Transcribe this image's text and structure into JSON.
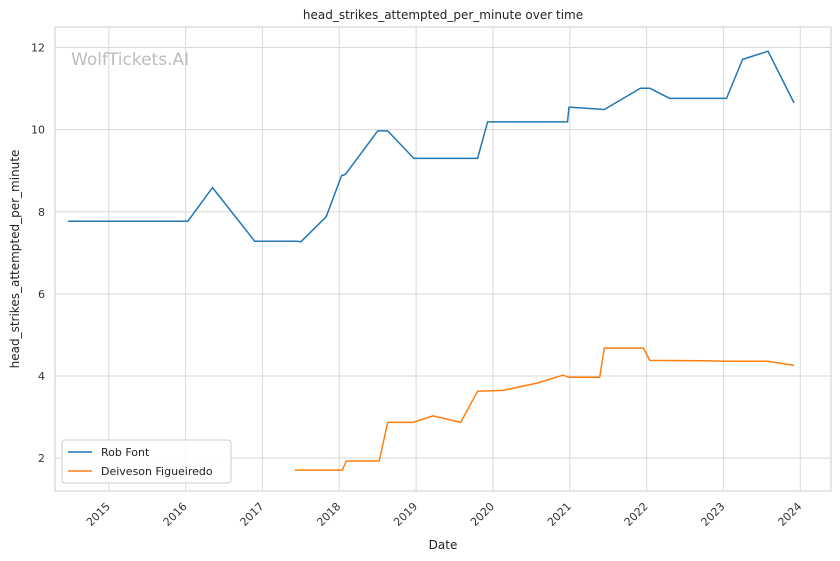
{
  "chart_data": {
    "type": "line",
    "title": "head_strikes_attempted_per_minute over time",
    "xlabel": "Date",
    "ylabel": "head_strikes_attempted_per_minute",
    "watermark": "WolfTickets.AI",
    "xlim": [
      2014.3,
      2024.4
    ],
    "ylim": [
      1.2,
      12.5
    ],
    "x_ticks": [
      2015,
      2016,
      2017,
      2018,
      2019,
      2020,
      2021,
      2022,
      2023,
      2024
    ],
    "x_tick_labels": [
      "2015",
      "2016",
      "2017",
      "2018",
      "2019",
      "2020",
      "2021",
      "2022",
      "2023",
      "2024"
    ],
    "y_ticks": [
      2,
      4,
      6,
      8,
      10,
      12
    ],
    "y_tick_labels": [
      "2",
      "4",
      "6",
      "8",
      "10",
      "12"
    ],
    "grid": true,
    "legend_position": "lower-left",
    "series": [
      {
        "name": "Rob Font",
        "color": "#1f77b4",
        "points": [
          [
            2014.47,
            7.77
          ],
          [
            2016.03,
            7.77
          ],
          [
            2016.35,
            8.59
          ],
          [
            2016.9,
            7.28
          ],
          [
            2017.45,
            7.28
          ],
          [
            2017.5,
            7.27
          ],
          [
            2017.83,
            7.88
          ],
          [
            2018.03,
            8.88
          ],
          [
            2018.08,
            8.91
          ],
          [
            2018.5,
            9.97
          ],
          [
            2018.63,
            9.97
          ],
          [
            2018.97,
            9.3
          ],
          [
            2019.8,
            9.3
          ],
          [
            2019.93,
            10.19
          ],
          [
            2020.97,
            10.19
          ],
          [
            2020.99,
            10.55
          ],
          [
            2021.45,
            10.49
          ],
          [
            2021.92,
            11.01
          ],
          [
            2022.04,
            11.01
          ],
          [
            2022.3,
            10.76
          ],
          [
            2023.04,
            10.76
          ],
          [
            2023.25,
            11.71
          ],
          [
            2023.58,
            11.91
          ],
          [
            2023.92,
            10.65
          ]
        ]
      },
      {
        "name": "Deiveson Figueiredo",
        "color": "#ff7f0e",
        "points": [
          [
            2017.42,
            1.71
          ],
          [
            2018.04,
            1.71
          ],
          [
            2018.09,
            1.93
          ],
          [
            2018.52,
            1.93
          ],
          [
            2018.63,
            2.87
          ],
          [
            2018.96,
            2.87
          ],
          [
            2019.22,
            3.03
          ],
          [
            2019.58,
            2.87
          ],
          [
            2019.8,
            3.63
          ],
          [
            2020.13,
            3.65
          ],
          [
            2020.58,
            3.83
          ],
          [
            2020.91,
            4.02
          ],
          [
            2020.99,
            3.97
          ],
          [
            2021.39,
            3.97
          ],
          [
            2021.45,
            4.68
          ],
          [
            2021.96,
            4.68
          ],
          [
            2022.04,
            4.38
          ],
          [
            2022.75,
            4.37
          ],
          [
            2023.04,
            4.36
          ],
          [
            2023.58,
            4.36
          ],
          [
            2023.92,
            4.26
          ]
        ]
      }
    ]
  }
}
